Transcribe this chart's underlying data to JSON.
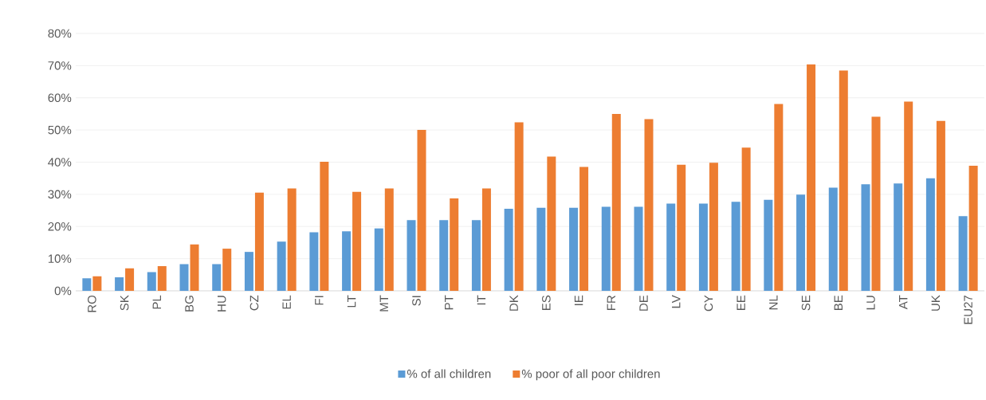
{
  "chart_data": {
    "type": "bar",
    "categories": [
      "RO",
      "SK",
      "PL",
      "BG",
      "HU",
      "CZ",
      "EL",
      "FI",
      "LT",
      "MT",
      "SI",
      "PT",
      "IT",
      "DK",
      "ES",
      "IE",
      "FR",
      "DE",
      "LV",
      "CY",
      "EE",
      "NL",
      "SE",
      "BE",
      "LU",
      "AT",
      "UK",
      "EU27"
    ],
    "series": [
      {
        "name": "% of all children",
        "color": "#5b9bd5",
        "values": [
          3.9,
          4.2,
          5.8,
          8.3,
          8.3,
          12.1,
          15.3,
          18.2,
          18.5,
          19.4,
          22,
          22,
          22,
          25.5,
          25.8,
          25.8,
          26.1,
          26.1,
          27.1,
          27.1,
          27.7,
          28.3,
          29.9,
          32.1,
          33.1,
          33.4,
          35,
          23.2
        ]
      },
      {
        "name": "% poor of all poor children",
        "color": "#ed7d31",
        "values": [
          4.5,
          7,
          7.7,
          14.4,
          13.1,
          30.5,
          31.8,
          40.1,
          30.8,
          31.8,
          50,
          28.7,
          31.8,
          52.4,
          41.7,
          38.5,
          55,
          53.4,
          39.2,
          39.8,
          44.5,
          58.1,
          70.4,
          68.5,
          54.1,
          58.8,
          52.8,
          38.9
        ]
      }
    ],
    "ylim": [
      0,
      80
    ],
    "yticks": [
      {
        "value": 0,
        "label": "0%"
      },
      {
        "value": 10,
        "label": "10%"
      },
      {
        "value": 20,
        "label": "20%"
      },
      {
        "value": 30,
        "label": "30%"
      },
      {
        "value": 40,
        "label": "40%"
      },
      {
        "value": 50,
        "label": "50%"
      },
      {
        "value": 60,
        "label": "60%"
      },
      {
        "value": 70,
        "label": "70%"
      },
      {
        "value": 80,
        "label": "80%"
      }
    ],
    "grid": "y",
    "legend": "bottom"
  }
}
